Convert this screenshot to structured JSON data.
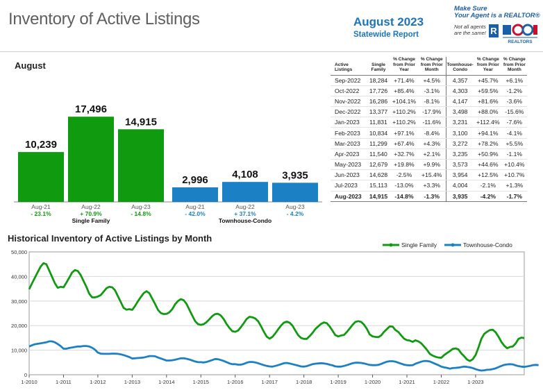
{
  "header": {
    "title": "Inventory of Active Listings",
    "report_month": "August 2023",
    "report_subtitle": "Statewide Report",
    "realtor_tagline_1": "Make Sure",
    "realtor_tagline_2": "Your Agent is a REALTOR®",
    "realtor_note_1": "Not all agents",
    "realtor_note_2": "are the same!",
    "realtor_mark": "R",
    "realtor_logo_text": "REALTORS"
  },
  "colors": {
    "single_family": "#109a10",
    "townhouse_condo": "#1b80c4",
    "title_gray": "#5f5f5f",
    "report_blue": "#1b75bc"
  },
  "section_title": "August",
  "historical_title": "Historical Inventory of Active Listings by Month",
  "chart_data": [
    {
      "type": "bar",
      "title": "August",
      "groups": [
        {
          "name": "Single Family",
          "color": "#109a10",
          "bars": [
            {
              "label": "Aug-21",
              "value": 10239,
              "value_label": "10,239",
              "change": "- 23.1%"
            },
            {
              "label": "Aug-22",
              "value": 17496,
              "value_label": "17,496",
              "change": "+ 70.9%"
            },
            {
              "label": "Aug-23",
              "value": 14915,
              "value_label": "14,915",
              "change": "- 14.8%"
            }
          ]
        },
        {
          "name": "Townhouse-Condo",
          "color": "#1b80c4",
          "bars": [
            {
              "label": "Aug-21",
              "value": 2996,
              "value_label": "2,996",
              "change": "- 42.0%"
            },
            {
              "label": "Aug-22",
              "value": 4108,
              "value_label": "4,108",
              "change": "+ 37.1%"
            },
            {
              "label": "Aug-23",
              "value": 3935,
              "value_label": "3,935",
              "change": "- 4.2%"
            }
          ]
        }
      ]
    },
    {
      "type": "table",
      "headers": [
        "Active Listings",
        "Single Family",
        "% Change from Prior Year",
        "% Change from Prior Month",
        "Townhouse-Condo",
        "% Change from Prior Year",
        "% Change from Prior Month"
      ],
      "rows": [
        [
          "Sep-2022",
          "18,284",
          "+71.4%",
          "+4.5%",
          "4,357",
          "+45.7%",
          "+6.1%"
        ],
        [
          "Oct-2022",
          "17,726",
          "+85.4%",
          "-3.1%",
          "4,303",
          "+59.5%",
          "-1.2%"
        ],
        [
          "Nov-2022",
          "16,286",
          "+104.1%",
          "-8.1%",
          "4,147",
          "+81.6%",
          "-3.6%"
        ],
        [
          "Dec-2022",
          "13,377",
          "+110.2%",
          "-17.9%",
          "3,498",
          "+88.0%",
          "-15.6%"
        ],
        [
          "Jan-2023",
          "11,831",
          "+110.2%",
          "-11.6%",
          "3,231",
          "+112.4%",
          "-7.6%"
        ],
        [
          "Feb-2023",
          "10,834",
          "+97.1%",
          "-8.4%",
          "3,100",
          "+94.1%",
          "-4.1%"
        ],
        [
          "Mar-2023",
          "11,299",
          "+67.4%",
          "+4.3%",
          "3,272",
          "+78.2%",
          "+5.5%"
        ],
        [
          "Apr-2023",
          "11,540",
          "+32.7%",
          "+2.1%",
          "3,235",
          "+50.9%",
          "-1.1%"
        ],
        [
          "May-2023",
          "12,679",
          "+19.8%",
          "+9.9%",
          "3,573",
          "+44.6%",
          "+10.4%"
        ],
        [
          "Jun-2023",
          "14,628",
          "-2.5%",
          "+15.4%",
          "3,954",
          "+12.5%",
          "+10.7%"
        ],
        [
          "Jul-2023",
          "15,113",
          "-13.0%",
          "+3.3%",
          "4,004",
          "-2.1%",
          "+1.3%"
        ],
        [
          "Aug-2023",
          "14,915",
          "-14.8%",
          "-1.3%",
          "3,935",
          "-4.2%",
          "-1.7%"
        ]
      ]
    },
    {
      "type": "line",
      "title": "Historical Inventory of Active Listings by Month",
      "ylim": [
        0,
        50000
      ],
      "yticks": [
        "0",
        "10,000",
        "20,000",
        "30,000",
        "40,000",
        "50,000"
      ],
      "xticks": [
        "1-2010",
        "1-2011",
        "1-2012",
        "1-2013",
        "1-2014",
        "1-2015",
        "1-2016",
        "1-2017",
        "1-2018",
        "1-2019",
        "1-2020",
        "1-2021",
        "1-2022",
        "1-2023"
      ],
      "x_start": "1-2010",
      "legend_position": "top-right",
      "series": [
        {
          "name": "Single Family",
          "color": "#109a10",
          "values": [
            34800,
            37200,
            39500,
            41800,
            44000,
            45400,
            45000,
            42500,
            39800,
            37200,
            35400,
            35800,
            35600,
            37500,
            39500,
            41600,
            42600,
            42200,
            40600,
            38200,
            35800,
            33000,
            31500,
            31500,
            31800,
            32400,
            33800,
            35200,
            35800,
            35600,
            34400,
            32000,
            29600,
            27200,
            26500,
            26700,
            26400,
            28000,
            29900,
            31600,
            33200,
            34000,
            33200,
            31000,
            28800,
            26400,
            25100,
            24700,
            24800,
            25400,
            26700,
            28700,
            30000,
            30800,
            30300,
            28800,
            26400,
            24100,
            21800,
            20600,
            20300,
            20600,
            21400,
            22600,
            23900,
            24700,
            24800,
            24100,
            22600,
            20600,
            19000,
            17700,
            17500,
            18000,
            19400,
            21000,
            22700,
            23600,
            23400,
            22900,
            21800,
            19800,
            17500,
            15500,
            14700,
            15400,
            16800,
            18500,
            20000,
            21200,
            21600,
            21200,
            20000,
            18000,
            16100,
            15000,
            14600,
            14600,
            15700,
            17000,
            18600,
            19700,
            20700,
            21300,
            21000,
            19700,
            17900,
            16100,
            15600,
            16000,
            16200,
            17400,
            18800,
            20300,
            21500,
            21800,
            21500,
            20400,
            18700,
            16400,
            15600,
            15400,
            15300,
            16000,
            17500,
            18600,
            19700,
            19600,
            18200,
            17400,
            16000,
            14700,
            14100,
            13900,
            13400,
            14000,
            13600,
            12800,
            11500,
            10100,
            8500,
            7800,
            7300,
            7000,
            6900,
            8000,
            8800,
            9600,
            10500,
            10700,
            10300,
            8700,
            7500,
            6200,
            5600,
            6300,
            8000,
            11100,
            14600,
            16600,
            17500,
            18200,
            18300,
            17300,
            15500,
            13400,
            11800,
            10800,
            11300,
            11500,
            12700,
            14600,
            15100,
            14900
          ]
        },
        {
          "name": "Townhouse-Condo",
          "color": "#1b80c4",
          "values": [
            11500,
            12000,
            12400,
            12600,
            12800,
            13000,
            13200,
            13600,
            13600,
            13200,
            12500,
            11700,
            10600,
            10600,
            10900,
            11100,
            11300,
            11500,
            11500,
            11700,
            11700,
            11500,
            11000,
            10200,
            9000,
            8600,
            8500,
            8500,
            8500,
            8600,
            8600,
            8500,
            8300,
            8000,
            7600,
            7200,
            6600,
            6700,
            6800,
            6900,
            7000,
            7300,
            7600,
            7600,
            7500,
            7000,
            6600,
            6200,
            5800,
            5800,
            5900,
            6100,
            6400,
            6700,
            6700,
            6500,
            6200,
            5800,
            5400,
            5100,
            5100,
            5000,
            5200,
            5600,
            6000,
            6400,
            6300,
            6000,
            5600,
            5100,
            4600,
            4300,
            4300,
            4100,
            4100,
            4400,
            4900,
            5200,
            5200,
            5000,
            4700,
            4300,
            3900,
            3600,
            3400,
            3300,
            3600,
            3900,
            4300,
            4700,
            4800,
            4600,
            4300,
            4000,
            3700,
            3400,
            3300,
            3500,
            3900,
            4300,
            4500,
            4600,
            4700,
            4600,
            4400,
            4100,
            3800,
            3400,
            3300,
            3300,
            3600,
            3900,
            4300,
            4700,
            4900,
            4900,
            4800,
            4600,
            4300,
            4000,
            3900,
            3900,
            4000,
            4400,
            4900,
            5300,
            5500,
            5500,
            5300,
            4900,
            4500,
            4100,
            3900,
            3800,
            3900,
            4500,
            4900,
            5300,
            5600,
            5600,
            5400,
            4900,
            4400,
            3900,
            3300,
            3000,
            2800,
            2500,
            2700,
            2800,
            2900,
            3100,
            3300,
            3200,
            3000,
            2700,
            2300,
            1900,
            1700,
            1800,
            2000,
            2100,
            2300,
            2600,
            3100,
            3600,
            4000,
            4200,
            4300,
            4200,
            3800,
            3500,
            3300,
            3200,
            3400,
            3600,
            3900,
            4000,
            3900
          ]
        }
      ]
    }
  ]
}
